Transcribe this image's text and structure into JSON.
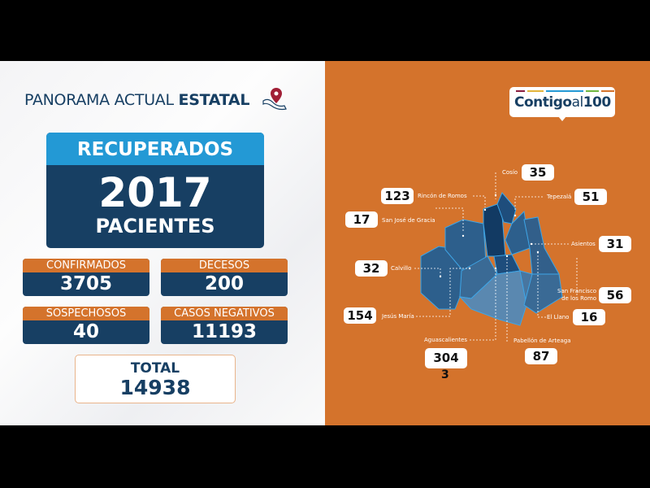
{
  "header": {
    "title_light": "PANORAMA ACTUAL",
    "title_bold": "ESTATAL",
    "icon": "mexico-map-pin-icon"
  },
  "recuperados": {
    "label": "RECUPERADOS",
    "value": "2017",
    "unit": "PACIENTES"
  },
  "stats": [
    {
      "label": "CONFIRMADOS",
      "value": "3705"
    },
    {
      "label": "DECESOS",
      "value": "200"
    },
    {
      "label": "SOSPECHOSOS",
      "value": "40"
    },
    {
      "label": "CASOS NEGATIVOS",
      "value": "11193"
    }
  ],
  "total": {
    "label": "TOTAL",
    "value": "14938"
  },
  "logo": {
    "text_bold": "Contigo",
    "text_light": "al",
    "text_num": "100",
    "bar_colors": [
      "#8b1e3f",
      "#e3b43a",
      "#2399d5",
      "#2399d5",
      "#6fb63f",
      "#d4732c"
    ]
  },
  "colors": {
    "navy": "#173f63",
    "light_blue": "#2399d5",
    "orange": "#d4732c"
  },
  "municipios": [
    {
      "name": "Cosío",
      "value": "35"
    },
    {
      "name": "Rincón de Romos",
      "value": "123"
    },
    {
      "name": "Tepezalá",
      "value": "51"
    },
    {
      "name": "San José de Gracia",
      "value": "17"
    },
    {
      "name": "Asientos",
      "value": "31"
    },
    {
      "name": "Calvillo",
      "value": "32"
    },
    {
      "name_line1": "San Francisco",
      "name_line2": "de los Romo",
      "value": "56"
    },
    {
      "name": "Jesús María",
      "value": "154"
    },
    {
      "name": "El Llano",
      "value": "16"
    },
    {
      "name": "Aguascalientes",
      "value": "304",
      "value_overflow": "3"
    },
    {
      "name": "Pabellón de Arteaga",
      "value": "87"
    }
  ]
}
